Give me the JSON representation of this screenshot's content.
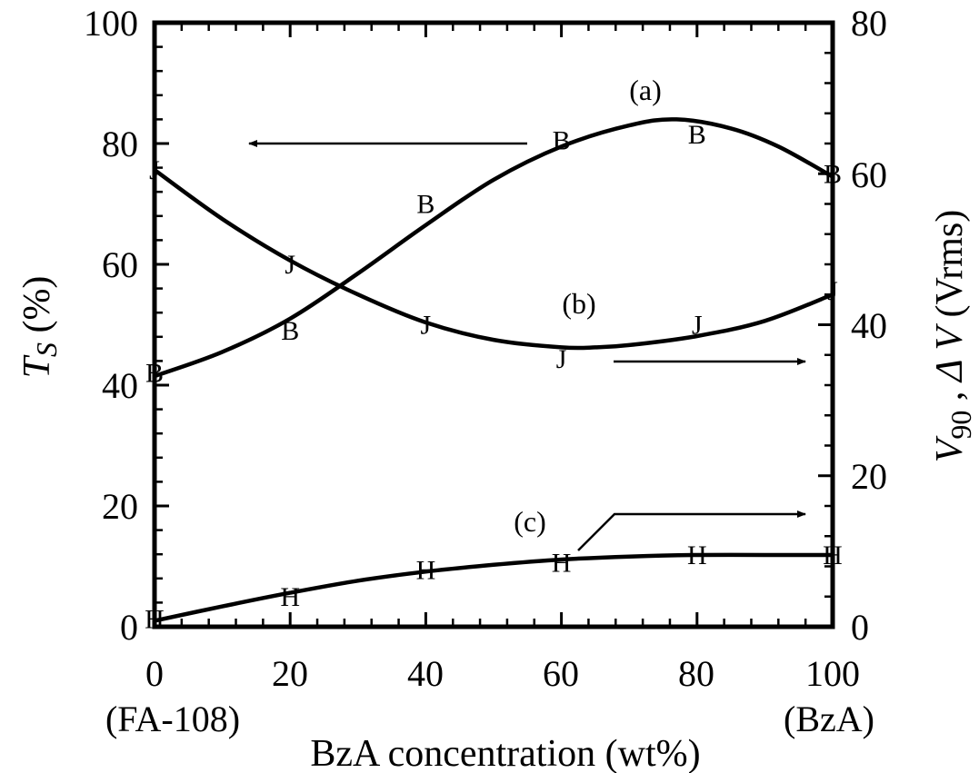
{
  "chart_data": {
    "type": "line",
    "xlabel": "BzA concentration (wt%)",
    "x_end_labels": {
      "left": "(FA-108)",
      "right": "(BzA)"
    },
    "ylabel_left": {
      "main": "T",
      "sub": "S",
      "unit": " (%)"
    },
    "ylabel_right": {
      "main": "V",
      "sub": "90",
      "sep": " , ",
      "delta": "Δ V",
      "unit": " (Vrms)"
    },
    "xlim": [
      0,
      100
    ],
    "ylim_left": [
      0,
      100
    ],
    "ylim_right": [
      0,
      80
    ],
    "x_ticks": [
      "0",
      "20",
      "40",
      "60",
      "80",
      "100"
    ],
    "y_left_ticks": [
      "0",
      "20",
      "40",
      "60",
      "80",
      "100"
    ],
    "y_right_ticks": [
      "0",
      "20",
      "40",
      "60",
      "80"
    ],
    "series": [
      {
        "label": "(a)",
        "marker": "B",
        "axis": "left",
        "x": [
          0,
          20,
          40,
          60,
          80,
          100
        ],
        "y": [
          42,
          49,
          70,
          80.5,
          81.5,
          75
        ],
        "curve_x": [
          0,
          10,
          20,
          30,
          40,
          50,
          60,
          70,
          77,
          85,
          92,
          100
        ],
        "curve_y": [
          41.5,
          45.5,
          51,
          58.5,
          66.5,
          74,
          79.5,
          83,
          84,
          82.5,
          79.5,
          74.5
        ]
      },
      {
        "label": "(b)",
        "marker": "J",
        "axis": "right",
        "x": [
          0,
          20,
          40,
          60,
          80,
          100
        ],
        "y": [
          60.5,
          48,
          40,
          35.5,
          40,
          44.5
        ],
        "curve_x": [
          0,
          10,
          20,
          30,
          40,
          50,
          60,
          65,
          70,
          80,
          90,
          100
        ],
        "curve_y": [
          60.5,
          54,
          48.5,
          44,
          40.3,
          38,
          37,
          37,
          37.3,
          38.5,
          40.5,
          44
        ]
      },
      {
        "label": "(c)",
        "marker": "H",
        "axis": "right",
        "x": [
          0,
          20,
          40,
          60,
          80,
          100
        ],
        "y": [
          1,
          4,
          7.5,
          8.5,
          9.5,
          9.5
        ],
        "curve_x": [
          0,
          10,
          20,
          30,
          40,
          50,
          60,
          70,
          80,
          90,
          100
        ],
        "curve_y": [
          0.8,
          2.7,
          4.5,
          6.1,
          7.3,
          8.2,
          8.9,
          9.3,
          9.5,
          9.5,
          9.5
        ]
      }
    ],
    "annotations": [
      {
        "text": "(a) arrow",
        "points_to": "left axis"
      },
      {
        "text": "(b) arrow",
        "points_to": "right axis"
      },
      {
        "text": "(c) arrow",
        "points_to": "right axis"
      }
    ]
  }
}
